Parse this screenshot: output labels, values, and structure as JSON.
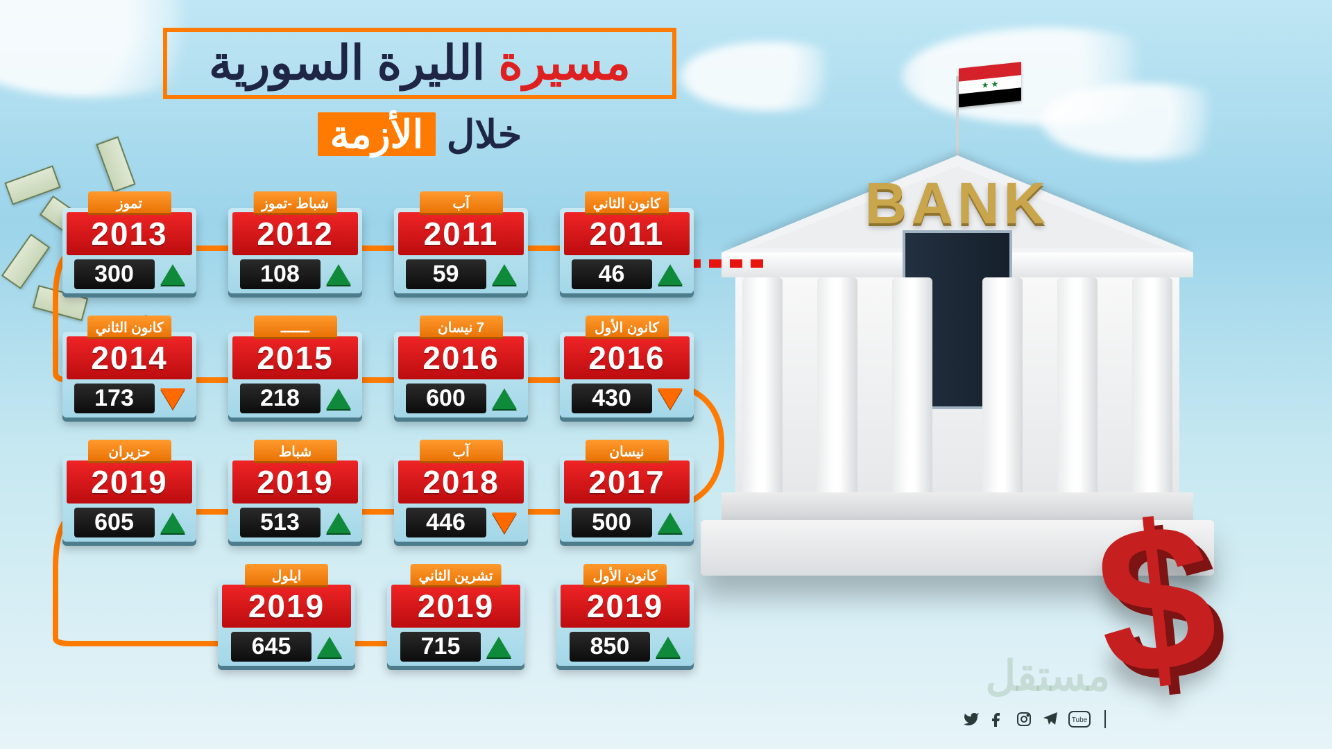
{
  "title": {
    "part1": "مسيرة",
    "part2": "الليرة السورية",
    "sub_plain": "خلال",
    "sub_highlight": "الأزمة"
  },
  "bank": {
    "sign": "BANK"
  },
  "flag_colors": [
    "#d4212a",
    "#ffffff",
    "#000000"
  ],
  "dollar_symbol": "$",
  "watermark": "مستقل",
  "colors": {
    "accent_orange": "#ff7a00",
    "card_bg_top": "#c9e9f3",
    "card_bg_bottom": "#a3d7e8",
    "year_bg": "#ef2425",
    "value_bg": "#1a1a1a",
    "up_triangle": "#0f8a3a",
    "down_triangle": "#ff6a00",
    "path": "#ff7a00",
    "red_arrow": "#e8140f"
  },
  "rows": [
    [
      {
        "month": "كانون الثاني",
        "year": "2011",
        "value": "46",
        "dir": "up"
      },
      {
        "month": "آب",
        "year": "2011",
        "value": "59",
        "dir": "up"
      },
      {
        "month": "شباط -تموز",
        "year": "2012",
        "value": "108",
        "dir": "up"
      },
      {
        "month": "تموز",
        "year": "2013",
        "value": "300",
        "dir": "up"
      }
    ],
    [
      {
        "month": "كانون الأول",
        "year": "2016",
        "value": "430",
        "dir": "down"
      },
      {
        "month": "7 نيسان",
        "year": "2016",
        "value": "600",
        "dir": "up"
      },
      {
        "month": "ـــــــ",
        "year": "2015",
        "value": "218",
        "dir": "up"
      },
      {
        "month": "كانون الثاني",
        "year": "2014",
        "value": "173",
        "dir": "down"
      }
    ],
    [
      {
        "month": "نيسان",
        "year": "2017",
        "value": "500",
        "dir": "up"
      },
      {
        "month": "آب",
        "year": "2018",
        "value": "446",
        "dir": "down"
      },
      {
        "month": "شباط",
        "year": "2019",
        "value": "513",
        "dir": "up"
      },
      {
        "month": "حزيران",
        "year": "2019",
        "value": "605",
        "dir": "up"
      }
    ],
    [
      {
        "month": "كانون الأول",
        "year": "2019",
        "value": "850",
        "dir": "up"
      },
      {
        "month": "تشرين الثاني",
        "year": "2019",
        "value": "715",
        "dir": "up"
      },
      {
        "month": "ايلول",
        "year": "2019",
        "value": "645",
        "dir": "up"
      }
    ]
  ],
  "socials": [
    "twitter",
    "facebook",
    "instagram",
    "telegram",
    "youtube"
  ]
}
